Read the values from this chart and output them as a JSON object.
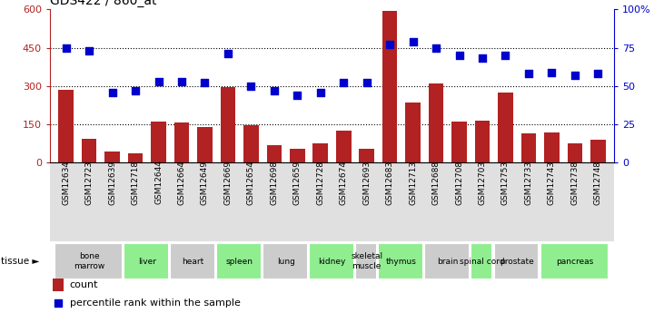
{
  "title": "GDS422 / 860_at",
  "samples": [
    "GSM12634",
    "GSM12723",
    "GSM12639",
    "GSM12718",
    "GSM12644",
    "GSM12664",
    "GSM12649",
    "GSM12669",
    "GSM12654",
    "GSM12698",
    "GSM12659",
    "GSM12728",
    "GSM12674",
    "GSM12693",
    "GSM12683",
    "GSM12713",
    "GSM12688",
    "GSM12708",
    "GSM12703",
    "GSM12753",
    "GSM12733",
    "GSM12743",
    "GSM12738",
    "GSM12748"
  ],
  "counts": [
    285,
    95,
    45,
    38,
    160,
    158,
    140,
    295,
    148,
    70,
    55,
    75,
    125,
    55,
    595,
    235,
    310,
    160,
    165,
    275,
    115,
    120,
    75,
    90
  ],
  "percentiles": [
    75,
    73,
    46,
    47,
    53,
    53,
    52,
    71,
    50,
    47,
    44,
    46,
    52,
    52,
    77,
    79,
    75,
    70,
    68,
    70,
    58,
    59,
    57,
    58
  ],
  "tissues": [
    {
      "name": "bone\nmarrow",
      "start": 0,
      "end": 3,
      "color": "#cccccc"
    },
    {
      "name": "liver",
      "start": 3,
      "end": 5,
      "color": "#90ee90"
    },
    {
      "name": "heart",
      "start": 5,
      "end": 7,
      "color": "#cccccc"
    },
    {
      "name": "spleen",
      "start": 7,
      "end": 9,
      "color": "#90ee90"
    },
    {
      "name": "lung",
      "start": 9,
      "end": 11,
      "color": "#cccccc"
    },
    {
      "name": "kidney",
      "start": 11,
      "end": 13,
      "color": "#90ee90"
    },
    {
      "name": "skeletal\nmuscle",
      "start": 13,
      "end": 14,
      "color": "#cccccc"
    },
    {
      "name": "thymus",
      "start": 14,
      "end": 16,
      "color": "#90ee90"
    },
    {
      "name": "brain",
      "start": 16,
      "end": 18,
      "color": "#cccccc"
    },
    {
      "name": "spinal cord",
      "start": 18,
      "end": 19,
      "color": "#90ee90"
    },
    {
      "name": "prostate",
      "start": 19,
      "end": 21,
      "color": "#cccccc"
    },
    {
      "name": "pancreas",
      "start": 21,
      "end": 24,
      "color": "#90ee90"
    }
  ],
  "bar_color": "#b22222",
  "dot_color": "#0000cd",
  "left_ylim": [
    0,
    600
  ],
  "right_ylim": [
    0,
    100
  ],
  "left_yticks": [
    0,
    150,
    300,
    450,
    600
  ],
  "right_yticks": [
    0,
    25,
    50,
    75,
    100
  ],
  "right_yticklabels": [
    "0",
    "25",
    "50",
    "75",
    "100%"
  ],
  "hlines": [
    150,
    300,
    450
  ],
  "background_color": "#ffffff"
}
